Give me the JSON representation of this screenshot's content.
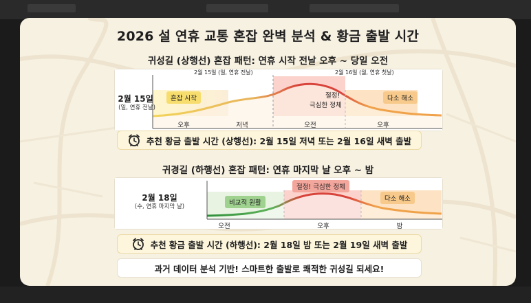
{
  "title": "2026 설 연휴 교통 혼잡 완벽 분석 & 황금 출발 시간",
  "outbound": {
    "subtitle": "귀성길 (상행선) 혼잡 패턴: 연휴 시작 전날 오후 ~ 당일 오전",
    "date_main": "2월 15일",
    "date_sub": "(일, 연휴 전날)",
    "top_label_1": "2월 15일 (일, 연휴 전날)",
    "top_label_2": "2월 16일 (월, 연휴 첫날)",
    "tag_start": "혼잡 시작",
    "tag_peak_1": "절정!",
    "tag_peak_2": "극심한 정체",
    "tag_ease": "다소 해소",
    "axis": [
      "오후",
      "저녁",
      "오전",
      "오후"
    ],
    "recommendation": "추천 황금 출발 시간 (상행선): 2월 15일 저녁 또는 2월 16일 새벽 출발"
  },
  "inbound": {
    "subtitle": "귀경길 (하행선) 혼잡 패턴: 연휴 마지막 날 오후 ~ 밤",
    "date_main": "2월 18일",
    "date_sub": "(수, 연휴 마지막 날)",
    "tag_smooth": "비교적 원활",
    "tag_peak": "절정! 극심한 정체",
    "tag_ease": "다소 해소",
    "axis": [
      "오전",
      "오후",
      "밤"
    ],
    "recommendation": "추천 황금 출발 시간 (하행선): 2월 18일 밤 또는 2월 19일 새벽 출발"
  },
  "footer": "과거 데이터 분석 기반! 스마트한 출발로 쾌적한 귀성길 되세요!",
  "colors": {
    "card_bg": "#f7f1e2",
    "yellow": "#f2d55a",
    "green": "#5fb35a",
    "red": "#d8443c",
    "orange": "#f0a24a",
    "peak_fill": "#fbd3cc",
    "ease_fill": "#fde3c4"
  }
}
